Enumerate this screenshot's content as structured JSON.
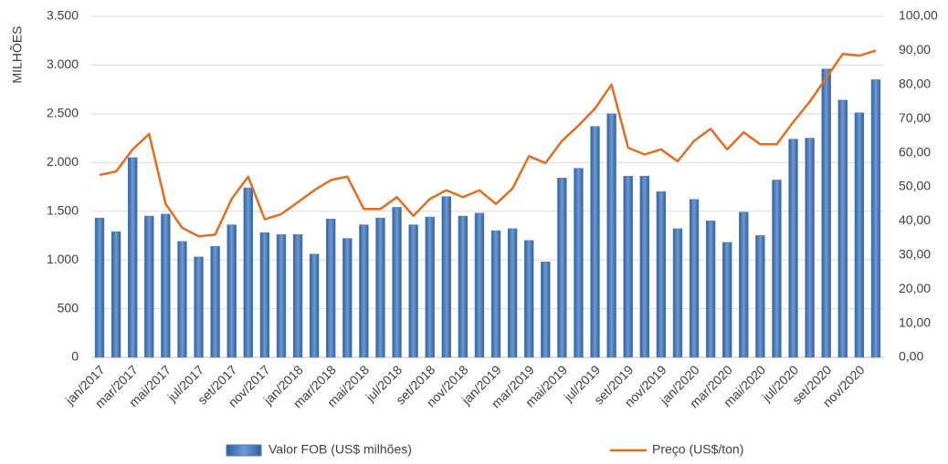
{
  "chart_data": {
    "type": "bar-line",
    "ylabel": "MILHÕES",
    "categories": [
      "jan/2017",
      null,
      "mar/2017",
      null,
      "mai/2017",
      null,
      "jul/2017",
      null,
      "set/2017",
      null,
      "nov/2017",
      null,
      "jan/2018",
      null,
      "mar/2018",
      null,
      "mai/2018",
      null,
      "jul/2018",
      null,
      "set/2018",
      null,
      "nov/2018",
      null,
      "jan/2019",
      null,
      "mar/2019",
      null,
      "mai/2019",
      null,
      "jul/2019",
      null,
      "set/2019",
      null,
      "nov/2019",
      null,
      "jan/2020",
      null,
      "mar/2020",
      null,
      "mai/2020",
      null,
      "jul/2020",
      null,
      "set/2020",
      null,
      "nov/2020",
      null
    ],
    "series": [
      {
        "name": "Valor FOB (US$ milhões)",
        "color": "#4a7ebb",
        "kind": "bar",
        "axis": "y",
        "values": [
          1430,
          1290,
          2050,
          1450,
          1470,
          1190,
          1030,
          1140,
          1360,
          1740,
          1280,
          1260,
          1260,
          1060,
          1420,
          1220,
          1360,
          1430,
          1540,
          1360,
          1440,
          1650,
          1450,
          1480,
          1300,
          1320,
          1200,
          980,
          1840,
          1940,
          2370,
          2500,
          1860,
          1860,
          1700,
          1320,
          1620,
          1400,
          1180,
          1490,
          1250,
          1820,
          2240,
          2250,
          2960,
          2640,
          2510,
          2850
        ]
      },
      {
        "name": "Preço (US$/ton)",
        "color": "#e46c1f",
        "kind": "line",
        "axis": "y2",
        "values": [
          53.5,
          54.5,
          61,
          65.5,
          45,
          38,
          35.5,
          36,
          46.5,
          53,
          40.5,
          42,
          45.5,
          49,
          52,
          53,
          43.5,
          43.5,
          47,
          41.5,
          46.5,
          49,
          47,
          49,
          45,
          49.5,
          59,
          57,
          63.5,
          68,
          73,
          80,
          61.5,
          59.5,
          61,
          57.5,
          63.5,
          67,
          61,
          66,
          62.5,
          62.5,
          69,
          75,
          82,
          89,
          88.5,
          90
        ]
      }
    ],
    "ylim": [
      0,
      3500
    ],
    "yticks": [
      0,
      500,
      {
        "value": 1000,
        "label": "1.000"
      },
      {
        "value": 1500,
        "label": "1.500"
      },
      {
        "value": 2000,
        "label": "2.000"
      },
      {
        "value": 2500,
        "label": "2.500"
      },
      {
        "value": 3000,
        "label": "3.000"
      },
      {
        "value": 3500,
        "label": "3.500"
      }
    ],
    "y2lim": [
      0,
      100
    ],
    "y2ticks": [
      {
        "value": 0,
        "label": "0,00"
      },
      {
        "value": 10,
        "label": "10,00"
      },
      {
        "value": 20,
        "label": "20,00"
      },
      {
        "value": 30,
        "label": "30,00"
      },
      {
        "value": 40,
        "label": "40,00"
      },
      {
        "value": 50,
        "label": "50,00"
      },
      {
        "value": 60,
        "label": "60,00"
      },
      {
        "value": 70,
        "label": "70,00"
      },
      {
        "value": 80,
        "label": "80,00"
      },
      {
        "value": 90,
        "label": "90,00"
      },
      {
        "value": 100,
        "label": "100,00"
      }
    ],
    "grid": true
  }
}
